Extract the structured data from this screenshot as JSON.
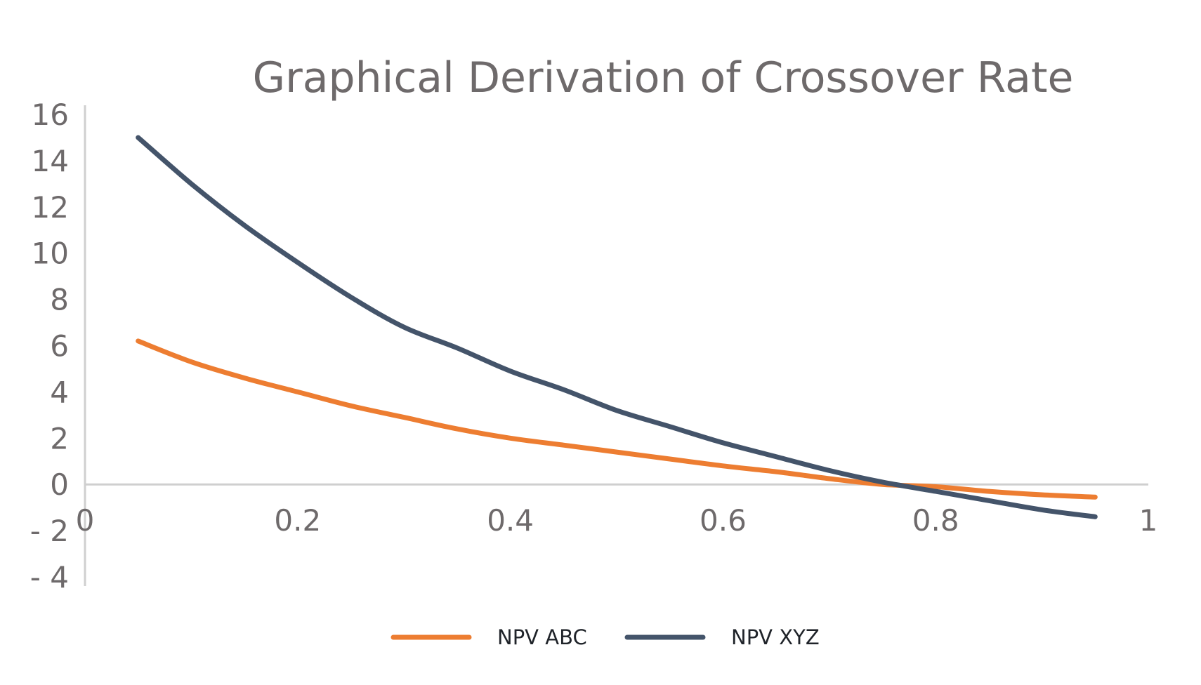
{
  "chart_data": {
    "type": "line",
    "title": "Graphical Derivation of Crossover Rate",
    "xlabel": "",
    "ylabel": "",
    "xlim": [
      0,
      1
    ],
    "ylim": [
      -4,
      16
    ],
    "x_ticks": [
      {
        "value": 0,
        "label": "0"
      },
      {
        "value": 0.2,
        "label": "0.2"
      },
      {
        "value": 0.4,
        "label": "0.4"
      },
      {
        "value": 0.6,
        "label": "0.6"
      },
      {
        "value": 0.8,
        "label": "0.8"
      },
      {
        "value": 1,
        "label": "1"
      }
    ],
    "y_ticks": [
      {
        "value": 16,
        "label": "16"
      },
      {
        "value": 14,
        "label": "14"
      },
      {
        "value": 12,
        "label": "12"
      },
      {
        "value": 10,
        "label": "10"
      },
      {
        "value": 8,
        "label": "8"
      },
      {
        "value": 6,
        "label": "6"
      },
      {
        "value": 4,
        "label": "4"
      },
      {
        "value": 2,
        "label": "2"
      },
      {
        "value": 0,
        "label": "0"
      },
      {
        "value": -2,
        "label": "- 2"
      },
      {
        "value": -4,
        "label": "- 4"
      }
    ],
    "grid": false,
    "legend_position": "bottom",
    "x": [
      0.05,
      0.1,
      0.15,
      0.2,
      0.25,
      0.3,
      0.35,
      0.4,
      0.45,
      0.5,
      0.55,
      0.6,
      0.65,
      0.7,
      0.75,
      0.8,
      0.85,
      0.9,
      0.95
    ],
    "series": [
      {
        "name": "NPV ABC",
        "color": "#ed7d31",
        "values": [
          6.2,
          5.3,
          4.6,
          4.0,
          3.4,
          2.9,
          2.4,
          2.0,
          1.7,
          1.4,
          1.1,
          0.8,
          0.55,
          0.25,
          0.0,
          -0.1,
          -0.3,
          -0.45,
          -0.55
        ]
      },
      {
        "name": "NPV XYZ",
        "color": "#44546a",
        "values": [
          15.0,
          13.0,
          11.2,
          9.6,
          8.1,
          6.8,
          5.9,
          4.9,
          4.1,
          3.2,
          2.5,
          1.8,
          1.2,
          0.6,
          0.1,
          -0.3,
          -0.7,
          -1.1,
          -1.4
        ]
      }
    ]
  }
}
